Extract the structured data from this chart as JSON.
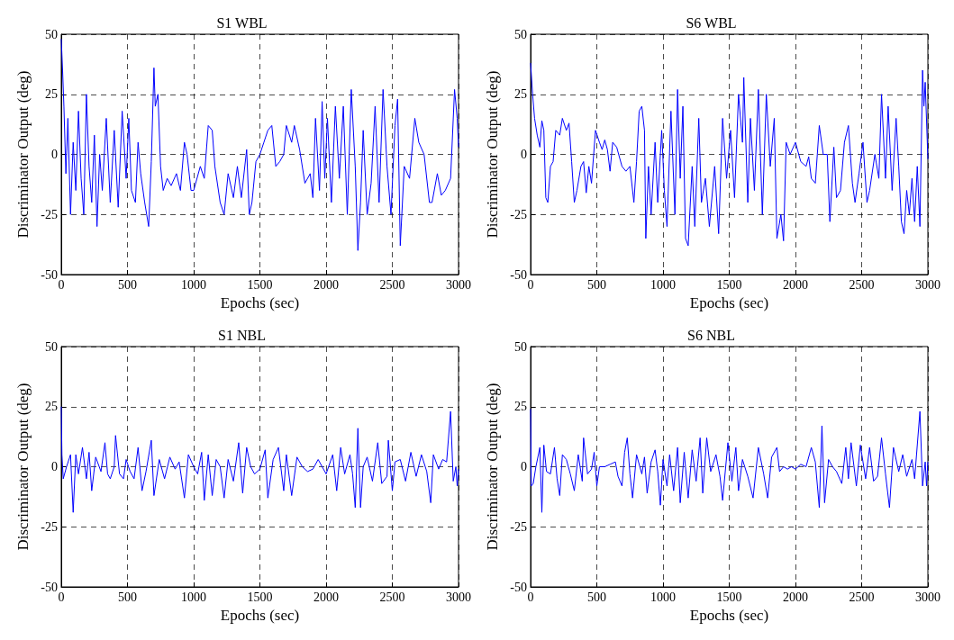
{
  "chart_data": [
    {
      "type": "line",
      "title": "S1 WBL",
      "xlabel": "Epochs (sec)",
      "ylabel": "Discriminator Output (deg)",
      "xlim": [
        0,
        3000
      ],
      "xticks": [
        0,
        500,
        1000,
        1500,
        2000,
        2500,
        3000
      ],
      "ylim": [
        -50,
        50
      ],
      "yticks": [
        -50,
        -25,
        0,
        25,
        50
      ],
      "grid": true,
      "series": [
        {
          "color": "#0000ff",
          "x": [
            0,
            10,
            20,
            35,
            50,
            70,
            90,
            110,
            130,
            150,
            170,
            190,
            210,
            230,
            250,
            270,
            290,
            310,
            340,
            370,
            400,
            430,
            460,
            490,
            510,
            530,
            560,
            580,
            600,
            630,
            660,
            680,
            700,
            710,
            730,
            750,
            770,
            800,
            830,
            870,
            900,
            930,
            950,
            980,
            1000,
            1050,
            1080,
            1110,
            1140,
            1160,
            1200,
            1230,
            1260,
            1300,
            1330,
            1360,
            1400,
            1420,
            1440,
            1470,
            1500,
            1530,
            1560,
            1590,
            1620,
            1650,
            1680,
            1700,
            1740,
            1760,
            1800,
            1840,
            1880,
            1900,
            1920,
            1950,
            1970,
            1990,
            2010,
            2040,
            2070,
            2100,
            2130,
            2160,
            2190,
            2220,
            2240,
            2260,
            2280,
            2310,
            2340,
            2370,
            2400,
            2430,
            2460,
            2490,
            2520,
            2540,
            2560,
            2590,
            2630,
            2670,
            2700,
            2740,
            2780,
            2800,
            2840,
            2870,
            2900,
            2940,
            2970,
            2990,
            3000
          ],
          "values": [
            48,
            35,
            20,
            -8,
            15,
            -25,
            5,
            -15,
            18,
            -10,
            -25,
            25,
            -5,
            -20,
            8,
            -30,
            0,
            -15,
            15,
            -20,
            10,
            -22,
            18,
            -10,
            15,
            -15,
            -20,
            5,
            -8,
            -20,
            -30,
            -3,
            36,
            20,
            25,
            -5,
            -15,
            -10,
            -13,
            -8,
            -15,
            5,
            0,
            -15,
            -15,
            -5,
            -10,
            12,
            10,
            -5,
            -20,
            -25,
            -8,
            -18,
            -5,
            -18,
            2,
            -25,
            -20,
            -3,
            0,
            5,
            10,
            12,
            -5,
            -3,
            0,
            12,
            5,
            12,
            2,
            -12,
            -8,
            -18,
            15,
            -15,
            22,
            -10,
            15,
            -20,
            20,
            -10,
            20,
            -25,
            27,
            -5,
            -40,
            -20,
            10,
            -25,
            -12,
            20,
            -20,
            27,
            -5,
            -25,
            12,
            23,
            -38,
            -5,
            -10,
            15,
            5,
            0,
            -20,
            -20,
            -8,
            -17,
            -15,
            -10,
            27,
            15,
            3
          ]
        }
      ]
    },
    {
      "type": "line",
      "title": "S6 WBL",
      "xlabel": "Epochs (sec)",
      "ylabel": "Discriminator Output (deg)",
      "xlim": [
        0,
        3000
      ],
      "xticks": [
        0,
        500,
        1000,
        1500,
        2000,
        2500,
        3000
      ],
      "ylim": [
        -50,
        50
      ],
      "yticks": [
        -50,
        -25,
        0,
        25,
        50
      ],
      "grid": true,
      "series": [
        {
          "color": "#0000ff",
          "x": [
            0,
            15,
            30,
            50,
            70,
            85,
            100,
            115,
            130,
            150,
            170,
            190,
            220,
            240,
            270,
            290,
            310,
            330,
            350,
            380,
            400,
            420,
            440,
            460,
            490,
            520,
            540,
            560,
            580,
            600,
            620,
            650,
            690,
            720,
            750,
            780,
            800,
            820,
            840,
            860,
            870,
            890,
            910,
            940,
            960,
            990,
            1010,
            1030,
            1060,
            1090,
            1110,
            1130,
            1150,
            1170,
            1190,
            1220,
            1240,
            1270,
            1290,
            1320,
            1350,
            1390,
            1420,
            1450,
            1480,
            1510,
            1540,
            1570,
            1600,
            1610,
            1640,
            1660,
            1690,
            1720,
            1750,
            1780,
            1810,
            1840,
            1860,
            1890,
            1910,
            1930,
            1960,
            2000,
            2040,
            2080,
            2100,
            2120,
            2150,
            2180,
            2210,
            2240,
            2260,
            2290,
            2310,
            2340,
            2370,
            2400,
            2430,
            2450,
            2480,
            2510,
            2540,
            2560,
            2600,
            2630,
            2650,
            2680,
            2700,
            2730,
            2760,
            2780,
            2800,
            2820,
            2840,
            2860,
            2880,
            2900,
            2920,
            2940,
            2960,
            2970,
            2980,
            3000
          ],
          "values": [
            38,
            25,
            15,
            8,
            3,
            14,
            10,
            -18,
            -20,
            -5,
            -3,
            10,
            8,
            15,
            10,
            13,
            -3,
            -20,
            -15,
            -5,
            -3,
            -16,
            -5,
            -12,
            10,
            5,
            2,
            6,
            2,
            -7,
            5,
            3,
            -5,
            -7,
            -5,
            -20,
            -3,
            18,
            20,
            10,
            -35,
            -5,
            -25,
            5,
            -20,
            10,
            -15,
            -30,
            18,
            -25,
            27,
            -10,
            20,
            -35,
            -38,
            -5,
            -30,
            15,
            -20,
            -10,
            -30,
            -5,
            -33,
            15,
            -10,
            10,
            -18,
            25,
            5,
            32,
            -20,
            15,
            -15,
            27,
            -25,
            25,
            -5,
            15,
            -35,
            -25,
            -36,
            5,
            0,
            5,
            -3,
            -5,
            -1,
            -10,
            -12,
            12,
            0,
            0,
            -28,
            3,
            -18,
            -15,
            5,
            12,
            -12,
            -20,
            -8,
            5,
            -20,
            -15,
            0,
            -10,
            25,
            -10,
            20,
            -15,
            15,
            -5,
            -28,
            -33,
            -15,
            -25,
            -10,
            -28,
            -5,
            -30,
            35,
            20,
            30,
            -2
          ]
        }
      ]
    },
    {
      "type": "line",
      "title": "S1 NBL",
      "xlabel": "Epochs (sec)",
      "ylabel": "Discriminator Output (deg)",
      "xlim": [
        0,
        3000
      ],
      "xticks": [
        0,
        500,
        1000,
        1500,
        2000,
        2500,
        3000
      ],
      "ylim": [
        -50,
        50
      ],
      "yticks": [
        -50,
        -25,
        0,
        25,
        50
      ],
      "grid": true,
      "series": [
        {
          "color": "#0000ff",
          "x": [
            0,
            5,
            15,
            40,
            70,
            90,
            110,
            130,
            160,
            190,
            210,
            230,
            260,
            300,
            330,
            350,
            370,
            400,
            410,
            440,
            470,
            490,
            520,
            550,
            580,
            610,
            640,
            680,
            700,
            740,
            780,
            820,
            860,
            890,
            930,
            960,
            1000,
            1030,
            1060,
            1080,
            1110,
            1140,
            1170,
            1200,
            1230,
            1260,
            1300,
            1340,
            1370,
            1400,
            1430,
            1460,
            1500,
            1540,
            1560,
            1600,
            1640,
            1680,
            1700,
            1740,
            1780,
            1820,
            1860,
            1900,
            1940,
            2000,
            2050,
            2080,
            2110,
            2140,
            2180,
            2200,
            2220,
            2240,
            2260,
            2280,
            2310,
            2350,
            2390,
            2420,
            2460,
            2470,
            2500,
            2520,
            2560,
            2600,
            2640,
            2680,
            2720,
            2760,
            2790,
            2810,
            2850,
            2880,
            2910,
            2940,
            2960,
            2980,
            2990,
            3000
          ],
          "values": [
            25,
            5,
            -5,
            0,
            5,
            -19,
            5,
            -3,
            8,
            -5,
            6,
            -10,
            4,
            -2,
            10,
            -3,
            -5,
            0,
            13,
            -3,
            -5,
            3,
            -2,
            -5,
            8,
            -10,
            -2,
            11,
            -12,
            3,
            -5,
            4,
            -1,
            2,
            -13,
            5,
            0,
            -3,
            6,
            -14,
            5,
            -12,
            3,
            0,
            -13,
            3,
            -6,
            10,
            -11,
            8,
            0,
            -3,
            -1,
            7,
            -13,
            3,
            8,
            -10,
            5,
            -12,
            4,
            0,
            -2,
            -1,
            3,
            -3,
            5,
            -10,
            8,
            -3,
            5,
            -3,
            -17,
            16,
            -17,
            0,
            4,
            -6,
            10,
            -7,
            -4,
            11,
            -10,
            2,
            3,
            -6,
            6,
            -4,
            5,
            -2,
            -15,
            5,
            -1,
            3,
            2,
            23,
            -6,
            0,
            -8,
            -1
          ]
        }
      ]
    },
    {
      "type": "line",
      "title": "S6 NBL",
      "xlabel": "Epochs (sec)",
      "ylabel": "Discriminator Output (deg)",
      "xlim": [
        0,
        3000
      ],
      "xticks": [
        0,
        500,
        1000,
        1500,
        2000,
        2500,
        3000
      ],
      "ylim": [
        -50,
        50
      ],
      "yticks": [
        -50,
        -25,
        0,
        25,
        50
      ],
      "grid": true,
      "series": [
        {
          "color": "#0000ff",
          "x": [
            0,
            5,
            20,
            40,
            70,
            85,
            100,
            120,
            150,
            180,
            200,
            220,
            240,
            270,
            300,
            330,
            360,
            390,
            400,
            430,
            460,
            480,
            500,
            520,
            560,
            600,
            640,
            660,
            690,
            710,
            730,
            750,
            770,
            800,
            840,
            860,
            880,
            910,
            940,
            960,
            980,
            1000,
            1030,
            1050,
            1080,
            1110,
            1130,
            1160,
            1190,
            1220,
            1250,
            1280,
            1300,
            1330,
            1360,
            1400,
            1430,
            1450,
            1490,
            1520,
            1550,
            1570,
            1600,
            1640,
            1680,
            1720,
            1760,
            1790,
            1820,
            1860,
            1880,
            1910,
            1940,
            1970,
            2000,
            2040,
            2080,
            2120,
            2150,
            2180,
            2200,
            2220,
            2250,
            2280,
            2310,
            2350,
            2380,
            2400,
            2420,
            2460,
            2490,
            2530,
            2560,
            2590,
            2620,
            2650,
            2680,
            2710,
            2740,
            2780,
            2810,
            2840,
            2880,
            2900,
            2940,
            2960,
            2980,
            2990,
            3000
          ],
          "values": [
            24,
            -8,
            -7,
            0,
            8,
            -19,
            9,
            -2,
            -3,
            8,
            -5,
            -12,
            5,
            3,
            -3,
            -10,
            5,
            -6,
            12,
            -3,
            -1,
            6,
            -8,
            0,
            0,
            1,
            2,
            -4,
            -8,
            6,
            12,
            -3,
            -13,
            5,
            -3,
            4,
            -11,
            2,
            7,
            -2,
            -16,
            3,
            -8,
            5,
            -10,
            8,
            -15,
            6,
            -13,
            7,
            -6,
            12,
            -11,
            12,
            -2,
            5,
            -4,
            -14,
            10,
            -6,
            8,
            -10,
            3,
            -4,
            -13,
            8,
            -3,
            -13,
            4,
            8,
            -2,
            0,
            -1,
            0,
            -1,
            1,
            0,
            8,
            2,
            -17,
            17,
            -15,
            3,
            0,
            -2,
            -7,
            8,
            -5,
            10,
            -8,
            9,
            -5,
            8,
            -6,
            -4,
            12,
            -3,
            -17,
            8,
            -2,
            5,
            -4,
            3,
            -5,
            23,
            -8,
            2,
            -8,
            2
          ]
        }
      ]
    }
  ]
}
